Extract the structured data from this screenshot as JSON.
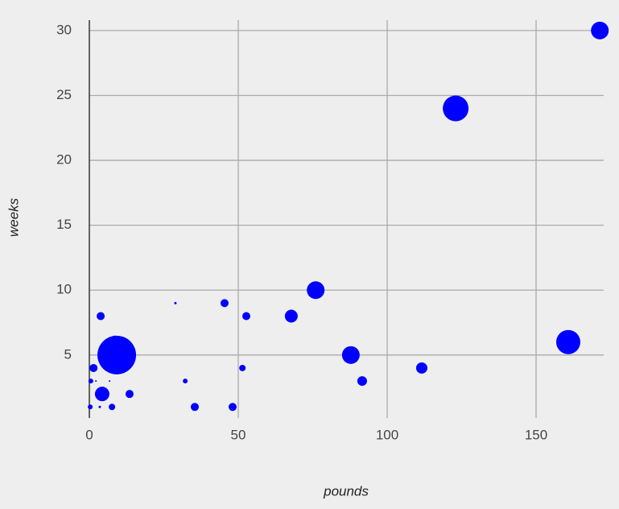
{
  "chart_data": {
    "type": "bubble",
    "x_label": "pounds",
    "y_label": "weeks",
    "xlim": [
      0,
      172.7
    ],
    "ylim": [
      0.15,
      30.8
    ],
    "xticks": [
      0,
      50,
      100,
      150
    ],
    "yticks": [
      5,
      10,
      15,
      20,
      25,
      30
    ],
    "grid": true,
    "series": [
      {
        "color": "#0000ff",
        "x": [
          171.4,
          123,
          160.8,
          76,
          87.8,
          9.2,
          8.6,
          67.8,
          111.6,
          91.6,
          45.4,
          52.7,
          51.4,
          28.9,
          32.2,
          35.4,
          48.1,
          13.5,
          4.3,
          3.8,
          1.4,
          0.5,
          2.2,
          6.8,
          0.3,
          3.5,
          7.6
        ],
        "values": [
          30,
          24,
          6,
          10,
          5,
          5,
          6,
          8,
          4,
          3,
          9,
          8,
          4,
          9,
          3,
          1,
          1,
          2,
          2,
          8,
          4,
          3,
          3,
          3,
          1,
          1,
          1
        ],
        "sizes": [
          11,
          16,
          15,
          11,
          11,
          24,
          8,
          8,
          7,
          6,
          5,
          5,
          4,
          1.5,
          3,
          5,
          5,
          5,
          9,
          5,
          5,
          3,
          1,
          1,
          3,
          1.5,
          4
        ]
      }
    ]
  }
}
